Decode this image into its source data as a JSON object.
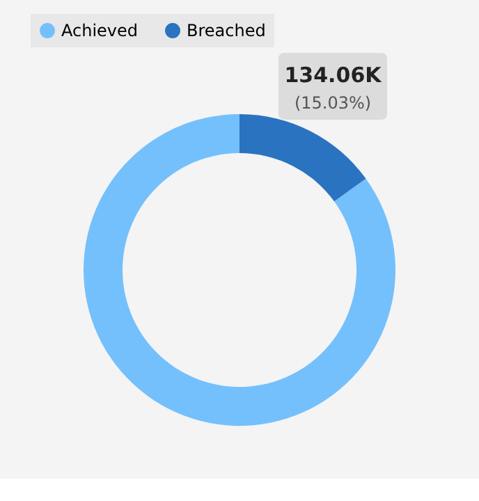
{
  "chart_data": {
    "type": "donut",
    "categories": [
      "Achieved",
      "Breached"
    ],
    "values": [
      84.97,
      15.03
    ],
    "colors": [
      "#74c0fc",
      "#2a73c0"
    ],
    "legend": "top",
    "annotations": [
      "134.06K",
      "(15.03%)"
    ]
  }
}
